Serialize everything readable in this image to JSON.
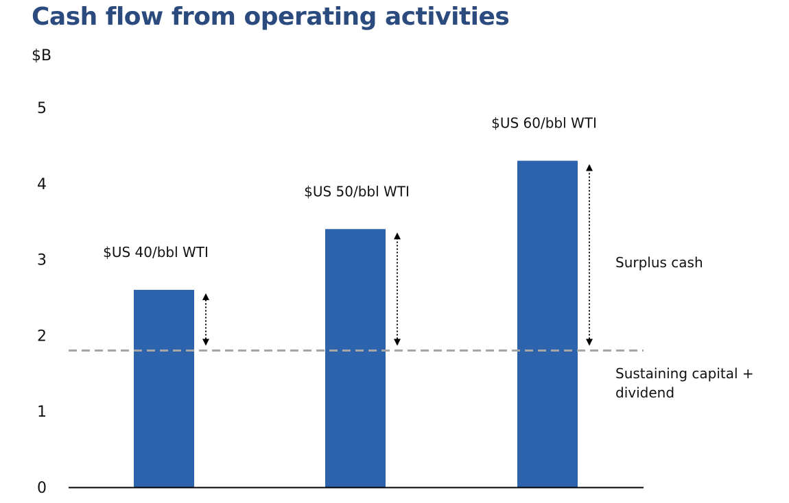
{
  "chart_data": {
    "type": "bar",
    "title": "Cash flow from operating activities",
    "ylabel": "$B",
    "xlabel": "",
    "ylim": [
      0,
      5
    ],
    "yticks": [
      "0",
      "1",
      "2",
      "3",
      "4",
      "5"
    ],
    "grid": false,
    "categories": [
      "$US 40/bbl WTI",
      "$US 50/bbl WTI",
      "$US 60/bbl WTI"
    ],
    "values": [
      2.6,
      3.4,
      4.3
    ],
    "bar_color": "#2c63ac",
    "reference_line": {
      "value": 1.8,
      "label": "Sustaining capital + dividend",
      "color": "#a6a6a6",
      "style": "dashed"
    },
    "annotation": {
      "label": "Surplus cash",
      "style": "dotted double-headed arrow from reference line to bar top"
    }
  }
}
